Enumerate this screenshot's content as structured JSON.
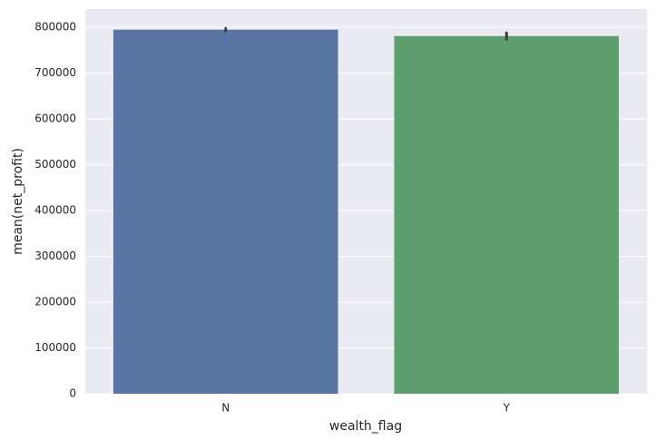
{
  "chart_data": {
    "type": "bar",
    "categories": [
      "N",
      "Y"
    ],
    "values": [
      795000,
      781000
    ],
    "errors": [
      3000,
      7000
    ],
    "colors": [
      "#5975a4",
      "#5f9e6e"
    ],
    "error_color": "#3f3f3f",
    "xlabel": "wealth_flag",
    "ylabel": "mean(net_profit)",
    "ylim": [
      0,
      840000
    ],
    "yticks": [
      0,
      100000,
      200000,
      300000,
      400000,
      500000,
      600000,
      700000,
      800000
    ],
    "grid": true
  }
}
